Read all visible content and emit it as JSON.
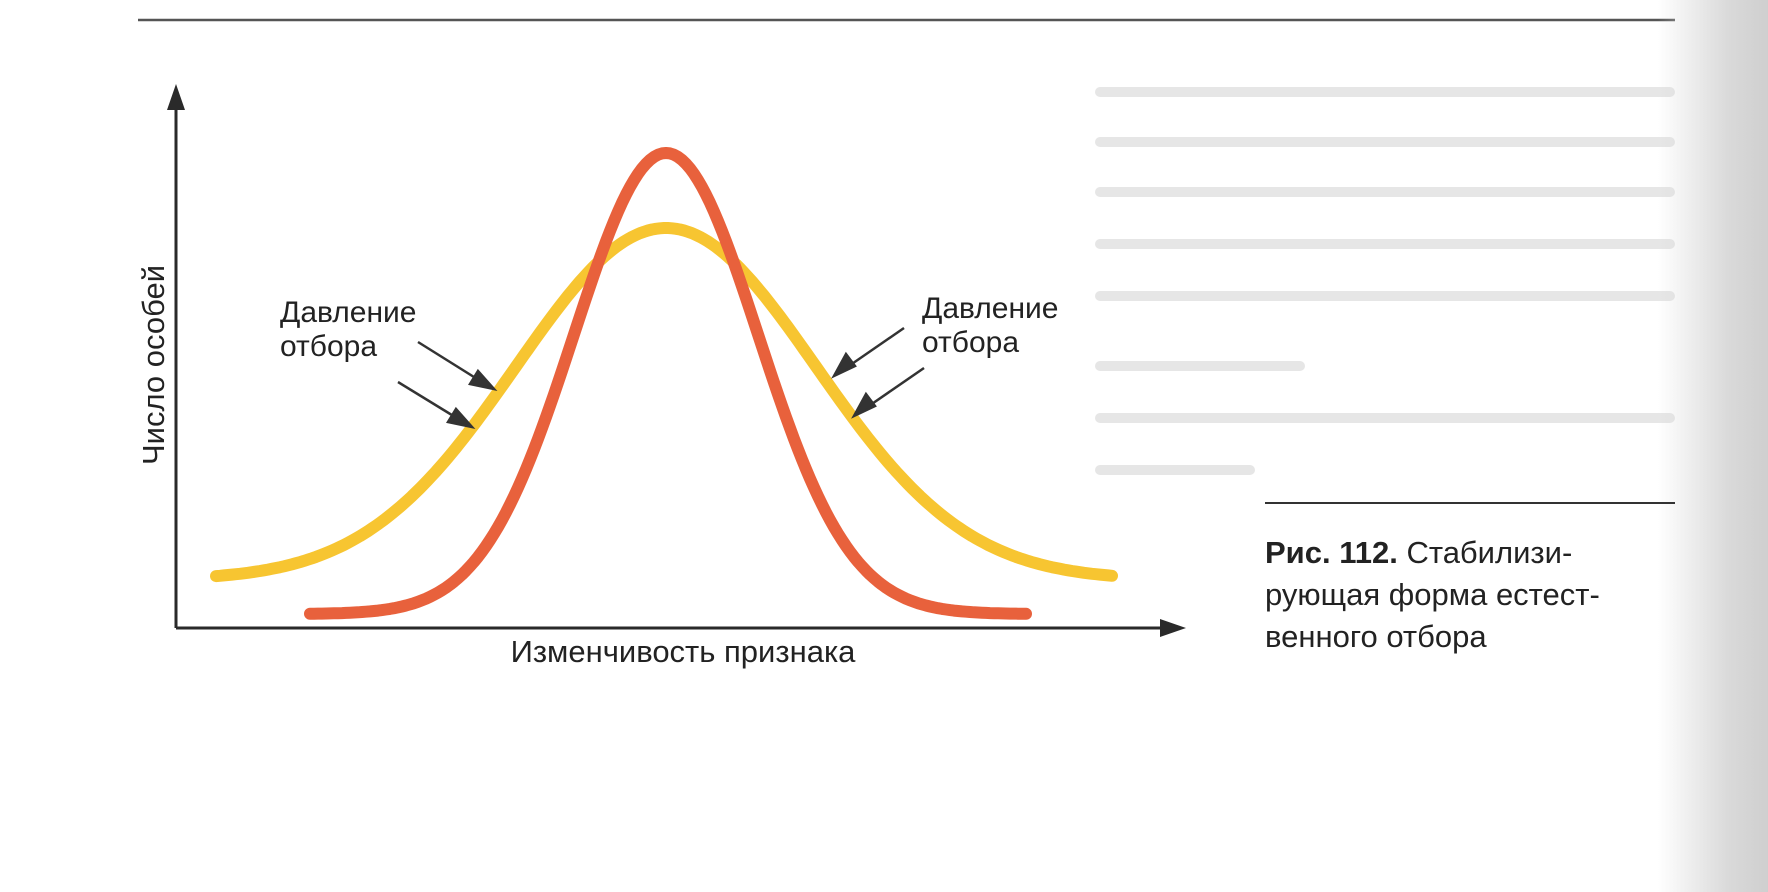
{
  "figure": {
    "y_axis_label": "Число особей",
    "x_axis_label": "Изменчивость признака",
    "pressure_left": [
      "Давление",
      "отбора"
    ],
    "pressure_right": [
      "Давление",
      "отбора"
    ],
    "caption_number": "Рис. 112.",
    "caption_lines": [
      "Стабилизи-",
      "рующая форма естест-",
      "венного отбора"
    ]
  },
  "colors": {
    "narrow_curve": "#e8613c",
    "wide_curve": "#f7c531",
    "axes": "#2a2a2a",
    "arrows": "#333333"
  }
}
